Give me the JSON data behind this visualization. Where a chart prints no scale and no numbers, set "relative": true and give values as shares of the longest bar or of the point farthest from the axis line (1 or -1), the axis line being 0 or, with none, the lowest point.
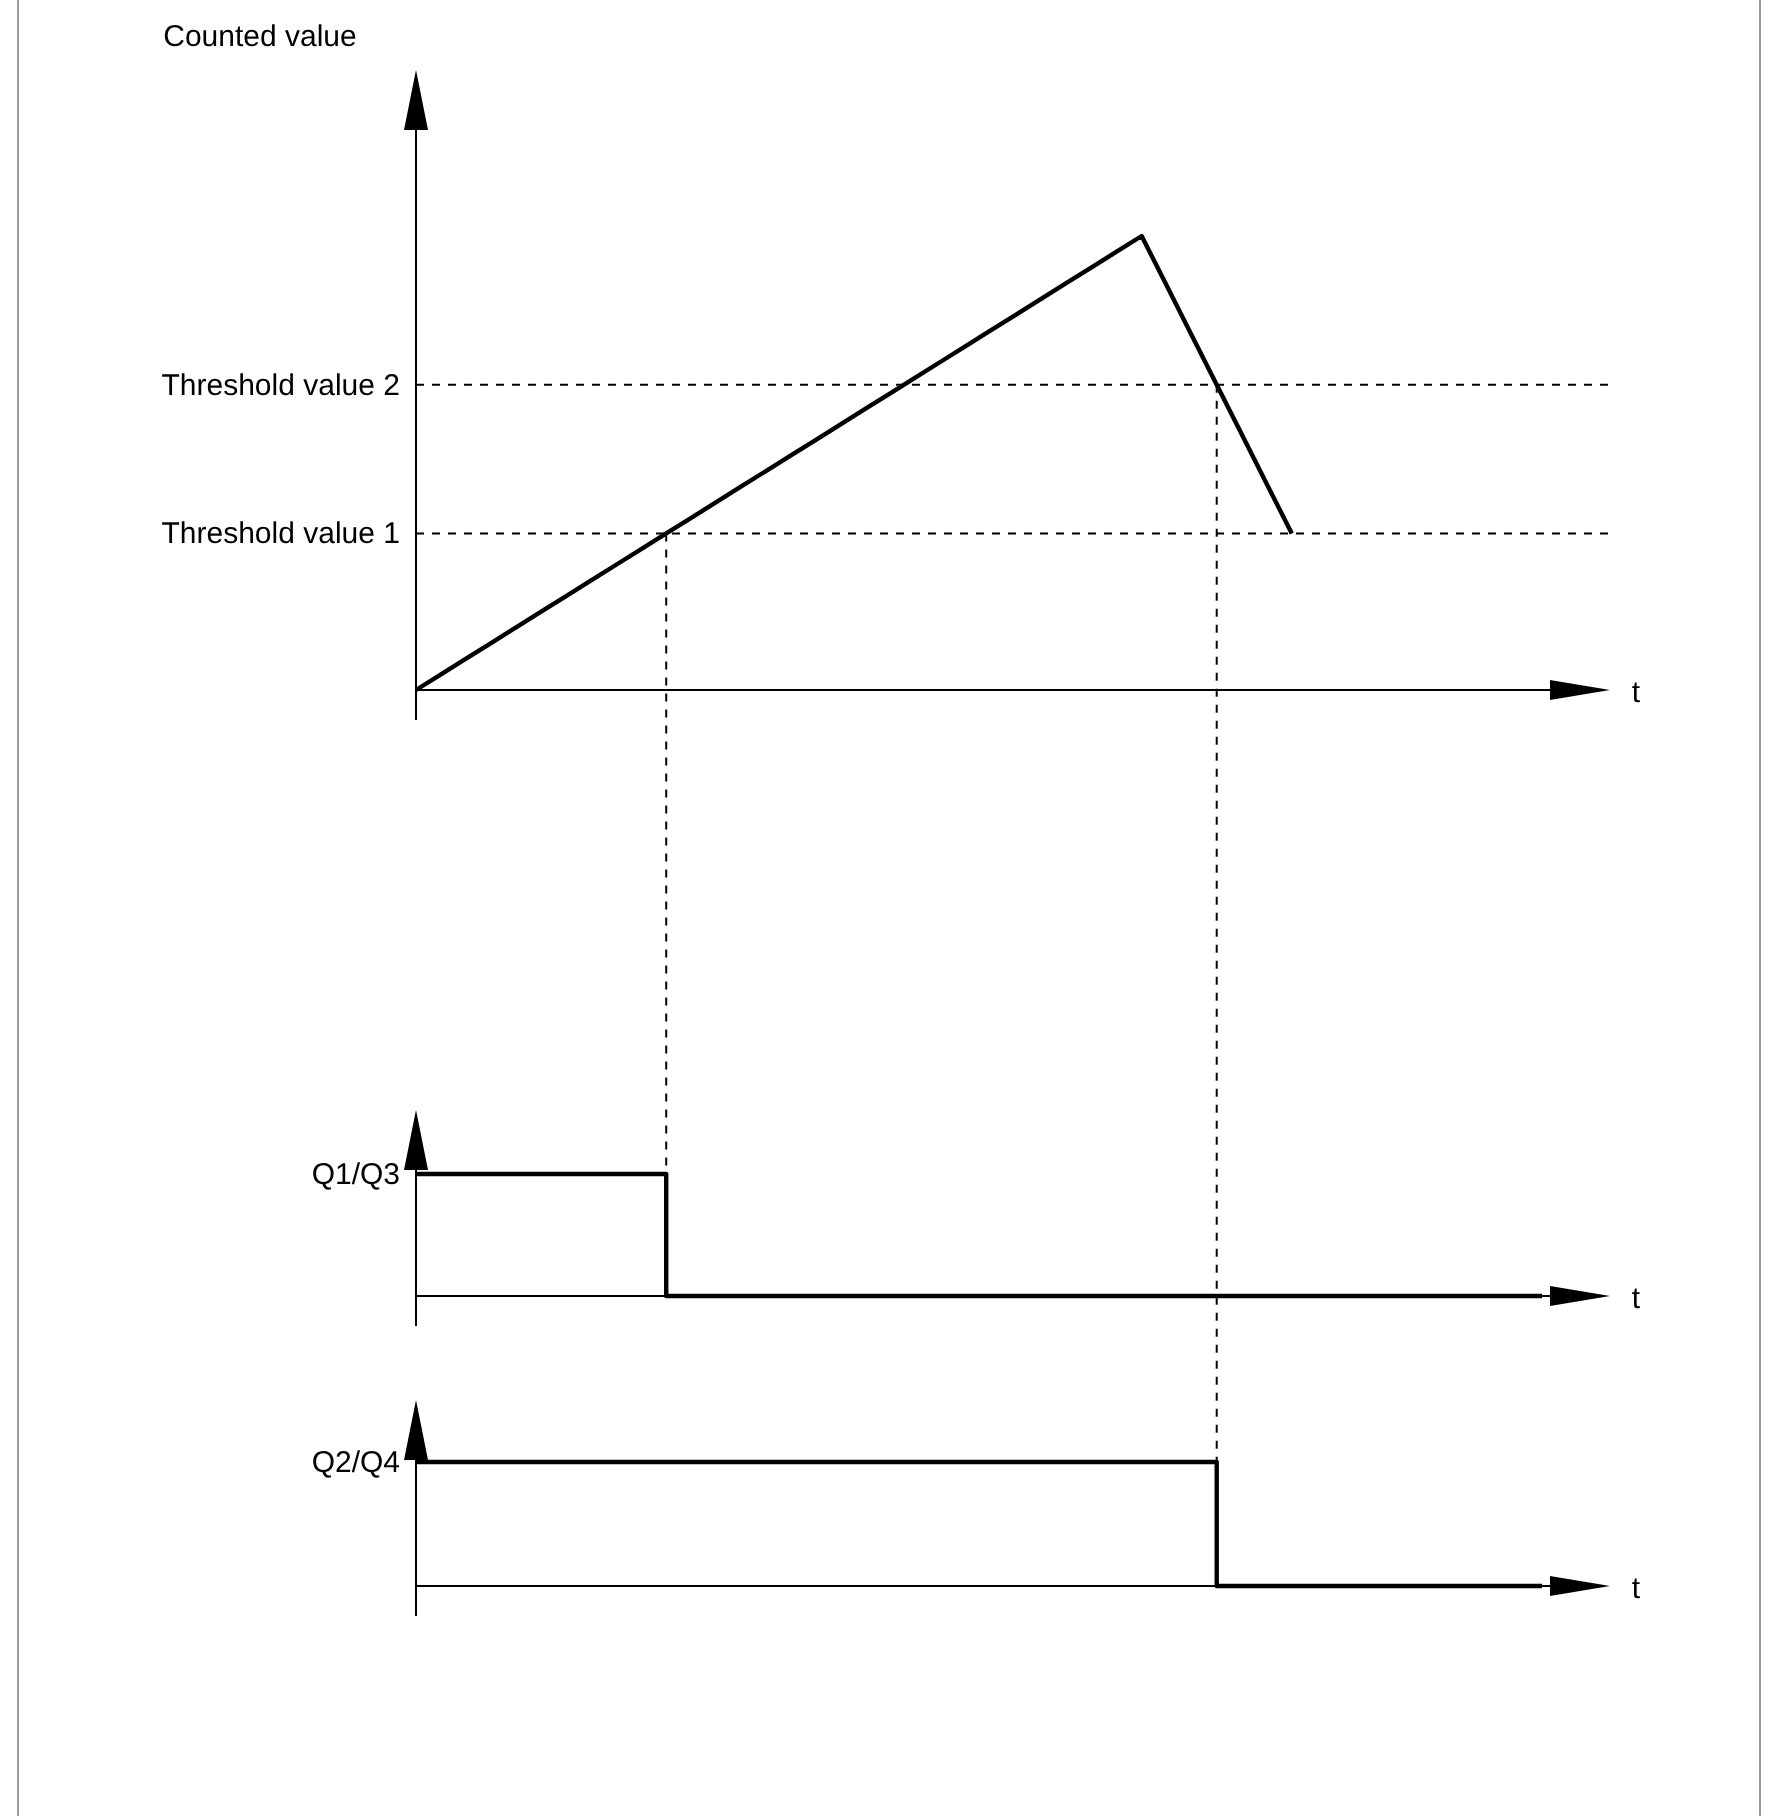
{
  "chart_data": [
    {
      "type": "line",
      "ylabel": "Counted value",
      "xlabel": "t",
      "relative": true,
      "categories": [
        null,
        null,
        null,
        null,
        null,
        null,
        null,
        null,
        null,
        null,
        null,
        null,
        null,
        null,
        null,
        null,
        null,
        null,
        null,
        null,
        null,
        null,
        null,
        null,
        null,
        null,
        null,
        null,
        null,
        null,
        null,
        null,
        null,
        null,
        null,
        null,
        null,
        null,
        null,
        null,
        null,
        null,
        null,
        null,
        null,
        null
      ],
      "values": [
        0,
        0.0345,
        0.069,
        0.1034,
        0.1379,
        0.1724,
        0.2069,
        0.2414,
        0.2759,
        0.3103,
        0.3448,
        0.3793,
        0.4138,
        0.4483,
        0.4828,
        0.5172,
        0.5517,
        0.5862,
        0.6207,
        0.6552,
        0.6897,
        0.7241,
        0.7586,
        0.7931,
        0.8276,
        0.8621,
        0.8966,
        0.931,
        0.9655,
        1,
        0.8908,
        0.7816,
        0.6724,
        0.5632,
        0.454,
        0.3448,
        null,
        null,
        null,
        null,
        null,
        null,
        null,
        null,
        null,
        null
      ],
      "color": "#000000",
      "marker": "none",
      "line_style": "solid",
      "ref_lines": [
        {
          "axis": "y",
          "value": 0.3448,
          "label": "Threshold value 1",
          "line_style": "dashed",
          "color": "#000000"
        },
        {
          "axis": "y",
          "value": 0.6724,
          "label": "Threshold value 2",
          "line_style": "dashed",
          "color": "#000000"
        }
      ]
    },
    {
      "type": "step",
      "ylabel": "Q1/Q3",
      "xlabel": "t",
      "relative": true,
      "categories": [
        null,
        null,
        null,
        null,
        null,
        null,
        null,
        null,
        null,
        null,
        null,
        null,
        null,
        null,
        null,
        null,
        null,
        null,
        null,
        null,
        null,
        null,
        null,
        null,
        null,
        null,
        null,
        null,
        null,
        null,
        null,
        null,
        null,
        null,
        null,
        null,
        null,
        null,
        null,
        null,
        null,
        null,
        null,
        null,
        null,
        null
      ],
      "values": [
        1,
        1,
        1,
        1,
        1,
        1,
        1,
        1,
        1,
        1,
        0,
        0,
        0,
        0,
        0,
        0,
        0,
        0,
        0,
        0,
        0,
        0,
        0,
        0,
        0,
        0,
        0,
        0,
        0,
        0,
        0,
        0,
        0,
        0,
        0,
        0,
        0,
        0,
        0,
        0,
        0,
        0,
        0,
        0,
        0,
        0
      ],
      "color": "#000000",
      "marker": "none",
      "line_style": "solid"
    },
    {
      "type": "step",
      "ylabel": "Q2/Q4",
      "xlabel": "t",
      "relative": true,
      "categories": [
        null,
        null,
        null,
        null,
        null,
        null,
        null,
        null,
        null,
        null,
        null,
        null,
        null,
        null,
        null,
        null,
        null,
        null,
        null,
        null,
        null,
        null,
        null,
        null,
        null,
        null,
        null,
        null,
        null,
        null,
        null,
        null,
        null,
        null,
        null,
        null,
        null,
        null,
        null,
        null,
        null,
        null,
        null,
        null,
        null,
        null
      ],
      "values": [
        1,
        1,
        1,
        1,
        1,
        1,
        1,
        1,
        1,
        1,
        1,
        1,
        1,
        1,
        1,
        1,
        1,
        1,
        1,
        1,
        1,
        1,
        1,
        1,
        1,
        1,
        1,
        1,
        1,
        1,
        1,
        1,
        0,
        0,
        0,
        0,
        0,
        0,
        0,
        0,
        0,
        0,
        0,
        0,
        0,
        0
      ],
      "color": "#000000",
      "marker": "none",
      "line_style": "solid"
    }
  ]
}
